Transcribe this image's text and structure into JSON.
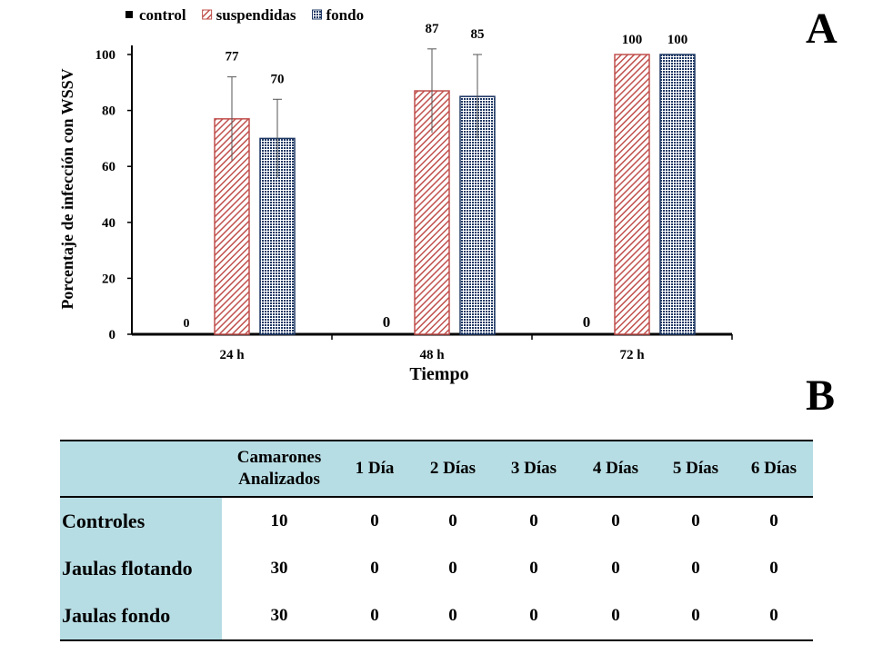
{
  "panels": {
    "a_label": "A",
    "b_label": "B"
  },
  "chart_data": {
    "type": "bar",
    "title": "",
    "xlabel": "Tiempo",
    "ylabel": "Porcentaje de infección con WSSV",
    "categories": [
      "24 h",
      "48 h",
      "72 h"
    ],
    "ylim": [
      0,
      100
    ],
    "yticks": [
      0,
      20,
      40,
      60,
      80,
      100
    ],
    "grid": false,
    "legend_position": "top",
    "series": [
      {
        "name": "control",
        "values": [
          0,
          0,
          0
        ],
        "errors": [
          0,
          0,
          0
        ],
        "value_labels": [
          "0",
          "0",
          "0"
        ],
        "color": "#000000",
        "pattern": "solid"
      },
      {
        "name": "suspendidas",
        "values": [
          77,
          87,
          100
        ],
        "errors": [
          15,
          15,
          0
        ],
        "value_labels": [
          "77",
          "87",
          "100"
        ],
        "color": "#c0504d",
        "pattern": "diagonal-hatch"
      },
      {
        "name": "fondo",
        "values": [
          70,
          85,
          100
        ],
        "errors": [
          14,
          15,
          0
        ],
        "value_labels": [
          "70",
          "85",
          "100"
        ],
        "color": "#1f3864",
        "pattern": "dots"
      }
    ]
  },
  "table": {
    "header": [
      "",
      "Camarones Analizados",
      "1 Día",
      "2 Días",
      "3 Días",
      "4 Días",
      "5 Días",
      "6 Días"
    ],
    "rows": [
      {
        "label": "Controles",
        "values": [
          "10",
          "0",
          "0",
          "0",
          "0",
          "0",
          "0"
        ]
      },
      {
        "label": "Jaulas flotando",
        "values": [
          "30",
          "0",
          "0",
          "0",
          "0",
          "0",
          "0"
        ]
      },
      {
        "label": "Jaulas fondo",
        "values": [
          "30",
          "0",
          "0",
          "0",
          "0",
          "0",
          "0"
        ]
      }
    ]
  }
}
